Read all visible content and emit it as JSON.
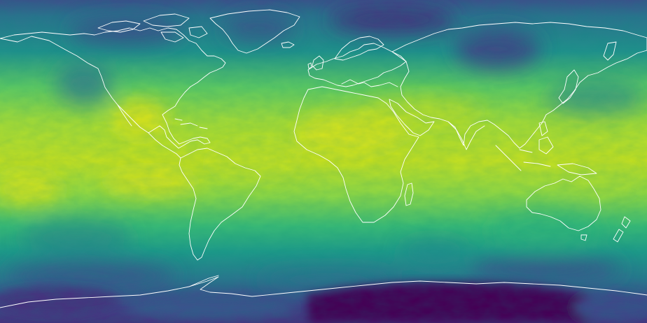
{
  "map": {
    "projection": "equirectangular",
    "colormap": "viridis",
    "colormap_stops": [
      "#440154",
      "#482878",
      "#3e4989",
      "#31688e",
      "#26828e",
      "#1f9e89",
      "#35b779",
      "#6ece58",
      "#b5de2b",
      "#fde725"
    ],
    "coastline_color": "#ffffff",
    "legend": "none",
    "axes": "none",
    "grid": false,
    "title": ""
  }
}
